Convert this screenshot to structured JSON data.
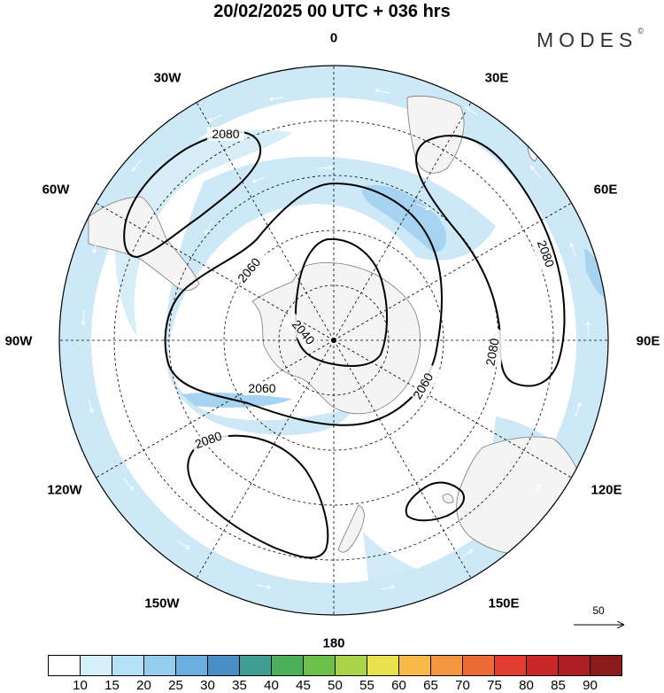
{
  "title": "20/02/2025  00 UTC  + 036 hrs",
  "brand": {
    "name": "MODES",
    "mark": "©"
  },
  "longitude_labels": [
    "0",
    "30E",
    "60E",
    "90E",
    "120E",
    "150E",
    "180",
    "150W",
    "120W",
    "90W",
    "60W",
    "30W"
  ],
  "contour_labels": [
    "2040",
    "2060",
    "2060",
    "2060",
    "2080",
    "2080",
    "2080",
    "2080"
  ],
  "reference_vector": {
    "label": "50"
  },
  "colorbar": {
    "ticks": [
      "10",
      "15",
      "20",
      "25",
      "30",
      "35",
      "40",
      "45",
      "50",
      "55",
      "60",
      "65",
      "70",
      "75",
      "80",
      "85",
      "90"
    ],
    "colors": [
      "#ffffff",
      "#d6f0fb",
      "#b5e2f7",
      "#94cdee",
      "#6aaee0",
      "#4a8ec8",
      "#3e9e92",
      "#4cb05a",
      "#6cbf4a",
      "#a8d34a",
      "#e8e04c",
      "#f7b94a",
      "#f49640",
      "#ec6a36",
      "#e03c30",
      "#c82828",
      "#ad1f24",
      "#8b1a1a"
    ]
  },
  "colors": {
    "shading": "#cde8f6",
    "land": "#f4f4f4",
    "coast": "#7a7a7a"
  }
}
